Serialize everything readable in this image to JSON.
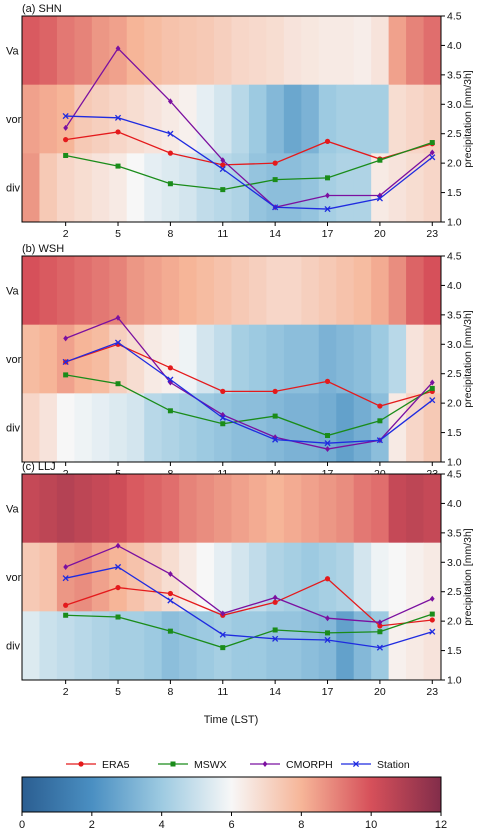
{
  "figure": {
    "xlabel": "Time (LST)",
    "ylabel_right": "precipitation [mm/3h]",
    "colorbar": {
      "ticks": [
        0,
        2,
        4,
        6,
        8,
        10,
        12
      ],
      "range": [
        0,
        12
      ],
      "colormap": "RdBu_r",
      "colors": [
        "#2b5e91",
        "#4a8fc2",
        "#9dcae1",
        "#f7f7f7",
        "#f6b598",
        "#d6505a",
        "#822d4a"
      ]
    }
  },
  "chart_data": [
    {
      "type": "heatmap+line",
      "title": "(a) SHN",
      "rows": [
        "Va",
        "vor",
        "div"
      ],
      "x_ticks": [
        2,
        5,
        8,
        11,
        14,
        17,
        20,
        23
      ],
      "heatmap": {
        "Va": [
          9.8,
          9.6,
          9.2,
          9.0,
          8.6,
          8.4,
          8.0,
          7.8,
          7.6,
          7.5,
          7.4,
          7.2,
          7.0,
          6.9,
          6.8,
          6.6,
          6.5,
          6.4,
          6.4,
          6.3,
          6.6,
          8.4,
          9.0,
          9.4
        ],
        "vor": [
          8.4,
          8.2,
          8.0,
          7.4,
          7.2,
          7.0,
          6.8,
          6.6,
          6.4,
          6.2,
          5.6,
          5.2,
          4.6,
          4.0,
          3.4,
          2.8,
          3.2,
          4.0,
          4.2,
          4.2,
          4.2,
          6.8,
          7.0,
          7.2
        ],
        "div": [
          8.6,
          7.4,
          7.0,
          6.8,
          6.6,
          6.4,
          6.0,
          5.6,
          5.4,
          5.2,
          4.8,
          4.6,
          4.4,
          3.8,
          3.6,
          3.6,
          3.8,
          4.2,
          4.4,
          4.4,
          6.4,
          6.6,
          6.8,
          7.0
        ]
      },
      "y_ticks": [
        1.0,
        1.5,
        2.0,
        2.5,
        3.0,
        3.5,
        4.0,
        4.5
      ],
      "ylim": [
        1.0,
        4.5
      ],
      "x": [
        2,
        5,
        8,
        11,
        14,
        17,
        20,
        23
      ],
      "series": [
        {
          "name": "ERA5",
          "color": "#e41a1c",
          "marker": "circle",
          "values": [
            2.4,
            2.53,
            2.17,
            1.97,
            2.0,
            2.37,
            2.07,
            2.33
          ]
        },
        {
          "name": "MSWX",
          "color": "#1a8c1a",
          "marker": "square",
          "values": [
            2.13,
            1.95,
            1.65,
            1.55,
            1.72,
            1.75,
            2.05,
            2.35
          ]
        },
        {
          "name": "CMORPH",
          "color": "#7b10a0",
          "marker": "diamond",
          "values": [
            2.6,
            3.95,
            3.05,
            2.05,
            1.25,
            1.45,
            1.45,
            2.18
          ]
        },
        {
          "name": "Station",
          "color": "#1f2be0",
          "marker": "x",
          "values": [
            2.8,
            2.77,
            2.5,
            1.9,
            1.25,
            1.22,
            1.4,
            2.1
          ]
        }
      ]
    },
    {
      "type": "heatmap+line",
      "title": "(b) WSH",
      "rows": [
        "Va",
        "vor",
        "div"
      ],
      "x_ticks": [
        2,
        5,
        8,
        11,
        14,
        17,
        20,
        23
      ],
      "heatmap": {
        "Va": [
          10.0,
          9.8,
          9.6,
          9.4,
          9.2,
          9.0,
          8.6,
          8.4,
          8.2,
          8.0,
          7.8,
          7.6,
          7.4,
          7.2,
          7.0,
          7.0,
          7.2,
          7.4,
          7.6,
          7.8,
          8.2,
          8.8,
          9.6,
          10.0
        ],
        "vor": [
          7.8,
          8.0,
          8.4,
          8.0,
          7.8,
          7.2,
          6.8,
          6.4,
          6.2,
          5.8,
          5.2,
          4.8,
          4.2,
          4.0,
          3.8,
          3.6,
          3.6,
          3.2,
          3.4,
          3.6,
          4.0,
          4.6,
          6.6,
          7.0
        ],
        "div": [
          7.0,
          6.6,
          6.0,
          5.8,
          5.6,
          5.4,
          5.2,
          4.6,
          4.4,
          4.2,
          4.0,
          3.8,
          3.6,
          3.6,
          3.4,
          3.2,
          3.2,
          3.0,
          2.6,
          3.0,
          3.6,
          6.4,
          7.0,
          7.4
        ]
      },
      "y_ticks": [
        1.0,
        1.5,
        2.0,
        2.5,
        3.0,
        3.5,
        4.0,
        4.5
      ],
      "ylim": [
        1.0,
        4.5
      ],
      "x": [
        2,
        5,
        8,
        11,
        14,
        17,
        20,
        23
      ],
      "series": [
        {
          "name": "ERA5",
          "color": "#e41a1c",
          "marker": "circle",
          "values": [
            2.7,
            3.0,
            2.6,
            2.2,
            2.2,
            2.37,
            1.95,
            2.2
          ]
        },
        {
          "name": "MSWX",
          "color": "#1a8c1a",
          "marker": "square",
          "values": [
            2.48,
            2.33,
            1.87,
            1.65,
            1.78,
            1.45,
            1.7,
            2.25
          ]
        },
        {
          "name": "CMORPH",
          "color": "#7b10a0",
          "marker": "diamond",
          "values": [
            3.1,
            3.45,
            2.35,
            1.8,
            1.42,
            1.22,
            1.37,
            2.35
          ]
        },
        {
          "name": "Station",
          "color": "#1f2be0",
          "marker": "x",
          "values": [
            2.7,
            3.03,
            2.4,
            1.75,
            1.38,
            1.32,
            1.37,
            2.05
          ]
        }
      ]
    },
    {
      "type": "heatmap+line",
      "title": "(c) LLJ",
      "rows": [
        "Va",
        "vor",
        "div"
      ],
      "x_ticks": [
        2,
        5,
        8,
        11,
        14,
        17,
        20,
        23
      ],
      "heatmap": {
        "Va": [
          10.4,
          10.6,
          10.8,
          10.6,
          10.4,
          10.2,
          9.8,
          9.6,
          9.4,
          9.0,
          8.8,
          8.6,
          8.4,
          8.2,
          8.0,
          8.2,
          8.4,
          8.6,
          8.8,
          9.2,
          9.4,
          10.4,
          10.6,
          10.4
        ],
        "vor": [
          7.4,
          7.6,
          8.6,
          8.8,
          8.4,
          8.0,
          7.6,
          7.2,
          6.8,
          6.4,
          6.0,
          5.6,
          5.2,
          4.8,
          4.4,
          4.2,
          4.0,
          4.2,
          4.4,
          5.2,
          5.8,
          6.0,
          6.2,
          6.4
        ],
        "div": [
          5.4,
          5.0,
          4.8,
          4.6,
          4.4,
          4.2,
          4.2,
          4.0,
          3.6,
          3.8,
          4.0,
          4.2,
          4.0,
          4.0,
          3.8,
          3.8,
          3.6,
          3.4,
          2.6,
          3.4,
          4.0,
          6.2,
          6.4,
          6.6
        ]
      },
      "y_ticks": [
        1.0,
        1.5,
        2.0,
        2.5,
        3.0,
        3.5,
        4.0,
        4.5
      ],
      "ylim": [
        1.0,
        4.5
      ],
      "x": [
        2,
        5,
        8,
        11,
        14,
        17,
        20,
        23
      ],
      "series": [
        {
          "name": "ERA5",
          "color": "#e41a1c",
          "marker": "circle",
          "values": [
            2.27,
            2.57,
            2.47,
            2.1,
            2.32,
            2.72,
            1.92,
            2.02
          ]
        },
        {
          "name": "MSWX",
          "color": "#1a8c1a",
          "marker": "square",
          "values": [
            2.1,
            2.07,
            1.83,
            1.55,
            1.85,
            1.8,
            1.82,
            2.12
          ]
        },
        {
          "name": "CMORPH",
          "color": "#7b10a0",
          "marker": "diamond",
          "values": [
            2.92,
            3.28,
            2.8,
            2.13,
            2.4,
            2.05,
            1.98,
            2.38
          ]
        },
        {
          "name": "Station",
          "color": "#1f2be0",
          "marker": "x",
          "values": [
            2.73,
            2.92,
            2.35,
            1.77,
            1.7,
            1.68,
            1.55,
            1.82
          ]
        }
      ]
    }
  ]
}
